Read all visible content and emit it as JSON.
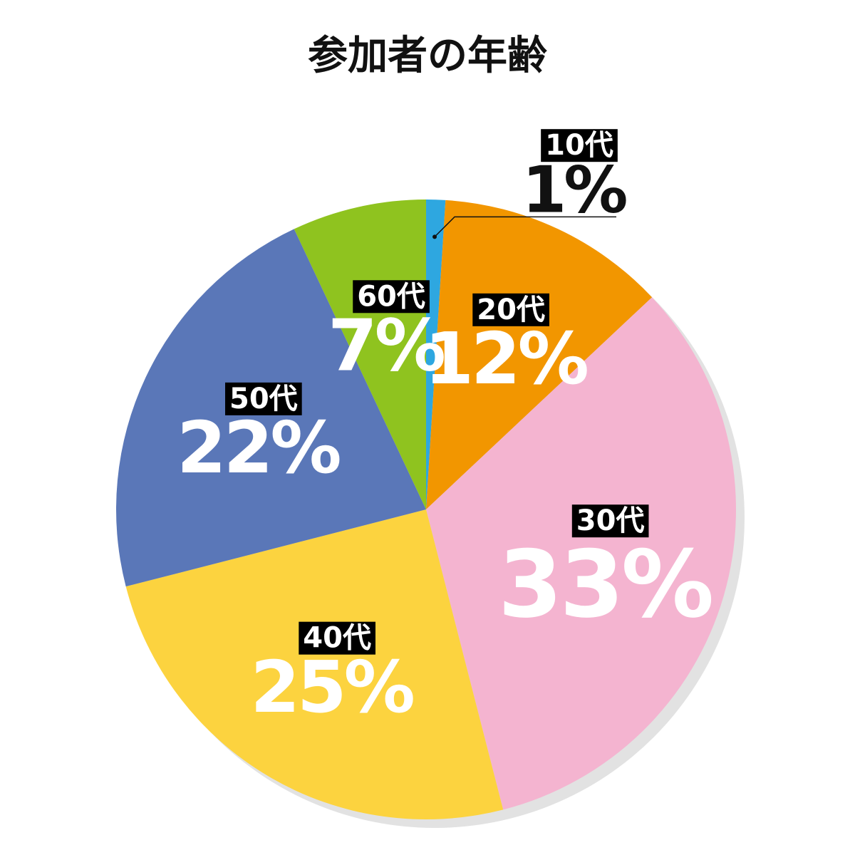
{
  "chart_data": {
    "type": "pie",
    "title": "参加者の年齢",
    "categories": [
      "10代",
      "20代",
      "30代",
      "40代",
      "50代",
      "60代"
    ],
    "values": [
      1,
      12,
      33,
      25,
      22,
      7
    ],
    "value_labels": [
      "1%",
      "12%",
      "33%",
      "25%",
      "22%",
      "7%"
    ],
    "colors": [
      "#2ea7e0",
      "#f29600",
      "#f4b4d0",
      "#fcd33f",
      "#5a77b8",
      "#8fc31f"
    ]
  }
}
